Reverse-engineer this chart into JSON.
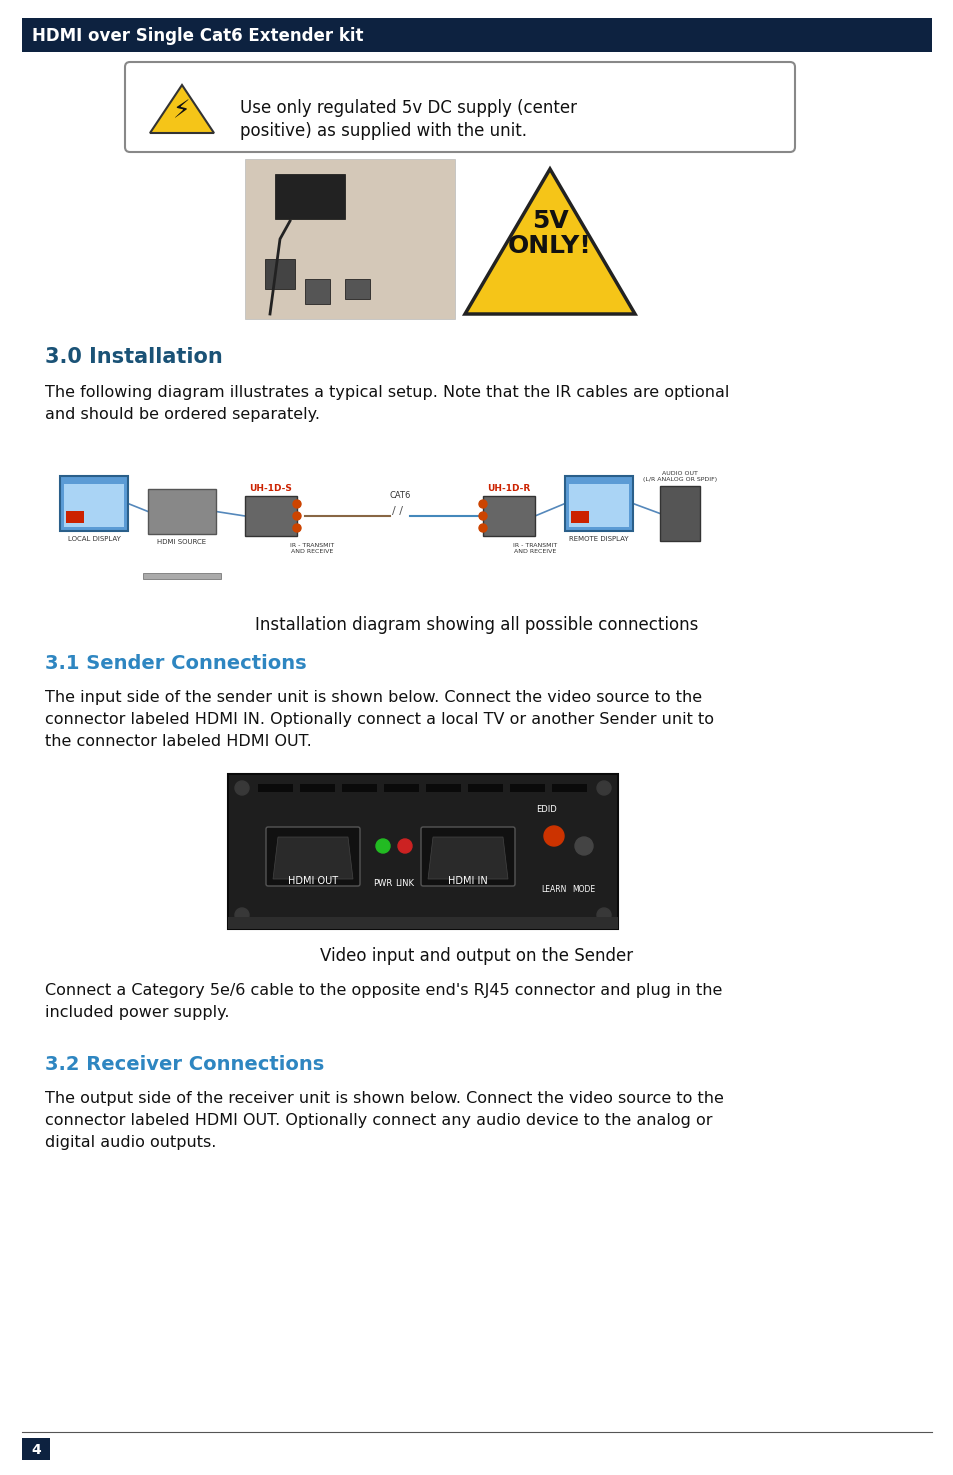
{
  "page_bg": "#ffffff",
  "header_bg": "#0d2240",
  "header_text": "HDMI over Single Cat6 Extender kit",
  "header_text_color": "#ffffff",
  "header_font_size": 13,
  "warning_text_line1": "Use only regulated 5v DC supply (center",
  "warning_text_line2": "positive) as supplied with the unit.",
  "section1_title": "3.0 Installation",
  "section1_title_color": "#1a5276",
  "section1_body_line1": "The following diagram illustrates a typical setup. Note that the IR cables are optional",
  "section1_body_line2": "and should be ordered separately.",
  "diagram_caption": "Installation diagram showing all possible connections",
  "section2_title": "3.1 Sender Connections",
  "section2_title_color": "#2e86c1",
  "section2_body_line1": "The input side of the sender unit is shown below. Connect the video source to the",
  "section2_body_line2": "connector labeled HDMI IN. Optionally connect a local TV or another Sender unit to",
  "section2_body_line3": "the connector labeled HDMI OUT.",
  "sender_caption": "Video input and output on the Sender",
  "section2_body2_line1": "Connect a Category 5e/6 cable to the opposite end's RJ45 connector and plug in the",
  "section2_body2_line2": "included power supply.",
  "section3_title": "3.2 Receiver Connections",
  "section3_title_color": "#2e86c1",
  "section3_body_line1": "The output side of the receiver unit is shown below. Connect the video source to the",
  "section3_body_line2": "connector labeled HDMI OUT. Optionally connect any audio device to the analog or",
  "section3_body_line3": "digital audio outputs.",
  "page_number": "4",
  "page_number_bg": "#0d2240",
  "page_number_color": "#ffffff",
  "body_font_size": 11.5,
  "body_color": "#111111",
  "header_dark": "#0d2240",
  "diag_label_color": "#cc2200",
  "diag_text_color": "#333333"
}
